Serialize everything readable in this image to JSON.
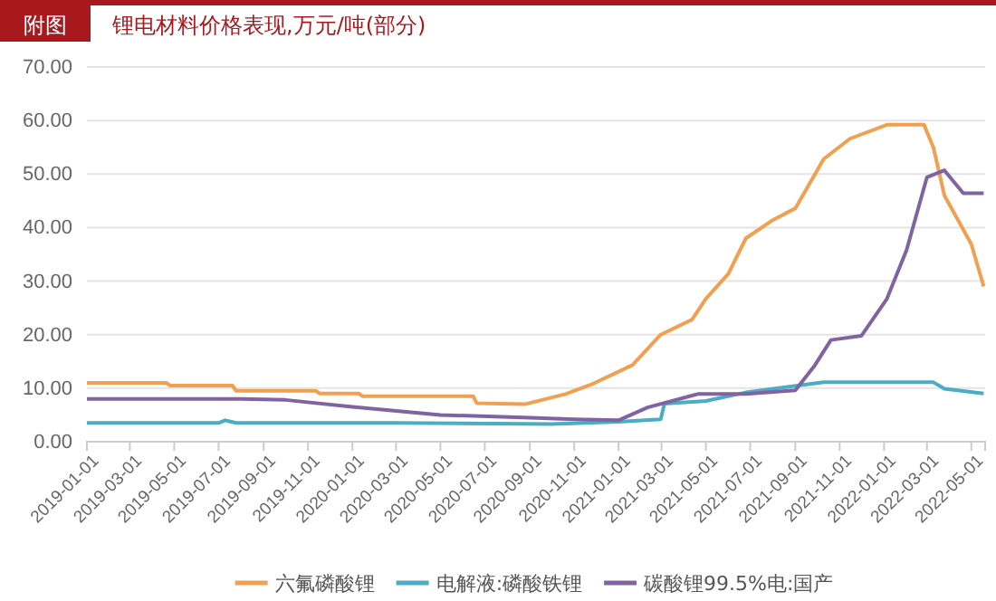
{
  "chart_data": {
    "type": "line",
    "title": "锂电材料价格表现,万元/吨(部分)",
    "subtitle": "附图",
    "xlim": [
      "2019-01-01",
      "2022-05-20"
    ],
    "xticks": [
      "2019-01-01",
      "2019-03-01",
      "2019-05-01",
      "2019-07-01",
      "2019-09-01",
      "2019-11-01",
      "2020-01-01",
      "2020-03-01",
      "2020-05-01",
      "2020-07-01",
      "2020-09-01",
      "2020-11-01",
      "2021-01-01",
      "2021-03-01",
      "2021-05-01",
      "2021-07-01",
      "2021-09-01",
      "2021-11-01",
      "2022-01-01",
      "2022-03-01",
      "2022-05-01"
    ],
    "ylim": [
      0,
      70
    ],
    "yticks": [
      {
        "value": 0,
        "label": "0.00"
      },
      {
        "value": 10,
        "label": "10.00"
      },
      {
        "value": 20,
        "label": "20.00"
      },
      {
        "value": 30,
        "label": "30.00"
      },
      {
        "value": 40,
        "label": "40.00"
      },
      {
        "value": 50,
        "label": "50.00"
      },
      {
        "value": 60,
        "label": "60.00"
      },
      {
        "value": 70,
        "label": "70.00"
      }
    ],
    "grid": "y",
    "legend": "bottom",
    "line_style": "solid",
    "marker": "none",
    "series": [
      {
        "name": "六氟磷酸锂",
        "color": "#f0a050",
        "x": [
          "2019-01-01",
          "2019-04-20",
          "2019-04-25",
          "2019-07-20",
          "2019-07-25",
          "2019-11-12",
          "2019-11-17",
          "2020-01-10",
          "2020-01-15",
          "2020-06-15",
          "2020-06-20",
          "2020-08-25",
          "2020-10-20",
          "2020-11-28",
          "2021-01-20",
          "2021-02-28",
          "2021-04-12",
          "2021-05-01",
          "2021-06-01",
          "2021-06-25",
          "2021-08-01",
          "2021-09-01",
          "2021-10-10",
          "2021-11-15",
          "2022-01-05",
          "2022-02-25",
          "2022-03-10",
          "2022-03-25",
          "2022-05-01",
          "2022-05-18"
        ],
        "values": [
          11,
          11,
          10.5,
          10.5,
          9.5,
          9.5,
          9,
          9,
          8.5,
          8.5,
          7.2,
          7,
          8.9,
          10.9,
          14.3,
          20,
          22.8,
          26.7,
          31.4,
          38,
          41.4,
          43.6,
          52.8,
          56.6,
          59.2,
          59.2,
          54.9,
          46,
          36.9,
          29
        ]
      },
      {
        "name": "电解液:磷酸铁锂",
        "color": "#4bacc6",
        "x": [
          "2019-01-01",
          "2019-07-01",
          "2019-07-10",
          "2019-07-25",
          "2020-03-01",
          "2020-10-01",
          "2021-01-01",
          "2021-02-28",
          "2021-03-05",
          "2021-05-01",
          "2021-06-25",
          "2021-10-10",
          "2022-03-10",
          "2022-03-25",
          "2022-05-18"
        ],
        "values": [
          3.5,
          3.5,
          4,
          3.5,
          3.5,
          3.3,
          3.7,
          4.2,
          7.1,
          7.6,
          9.2,
          11.1,
          11.1,
          9.9,
          9
        ]
      },
      {
        "name": "碳酸锂99.5%电:国产",
        "color": "#8064a2",
        "x": [
          "2019-01-01",
          "2019-08-01",
          "2019-10-01",
          "2020-01-01",
          "2020-05-01",
          "2020-09-01",
          "2020-11-01",
          "2021-01-01",
          "2021-02-10",
          "2021-04-20",
          "2021-06-25",
          "2021-09-01",
          "2021-09-28",
          "2021-10-20",
          "2021-12-01",
          "2022-01-05",
          "2022-02-01",
          "2022-03-01",
          "2022-03-25",
          "2022-04-20",
          "2022-05-18"
        ],
        "values": [
          8,
          8,
          7.8,
          6.5,
          5,
          4.5,
          4.2,
          4,
          6.4,
          8.9,
          8.9,
          9.6,
          14.3,
          19,
          19.8,
          26.7,
          35.8,
          49.4,
          50.7,
          46.4,
          46.4
        ]
      }
    ]
  }
}
